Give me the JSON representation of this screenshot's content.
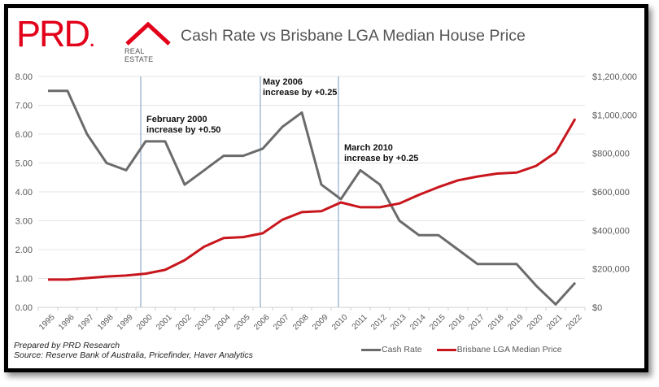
{
  "logo": {
    "brand": "PRD",
    "dot": ".",
    "sub": "REAL ESTATE"
  },
  "colors": {
    "brand_red": "#e2001a",
    "cash_rate": "#6b6b6b",
    "median_price": "#c8161d",
    "annotation_line": "#8eaac8",
    "grid": "#e4e4e4"
  },
  "footer": {
    "prepared_by": "Prepared by PRD Research",
    "source": "Source: Reserve Bank of Australia, Pricefinder, Haver Analytics"
  },
  "chart_data": {
    "type": "line",
    "title": "Cash Rate vs Brisbane LGA Median House Price",
    "xlabel": "",
    "ylabel": "",
    "y2label": "",
    "categories": [
      "1995",
      "1996",
      "1997",
      "1998",
      "1999",
      "2000",
      "2001",
      "2002",
      "2003",
      "2004",
      "2005",
      "2006",
      "2007",
      "2008",
      "2009",
      "2010",
      "2011",
      "2012",
      "2013",
      "2014",
      "2015",
      "2016",
      "2017",
      "2018",
      "2019",
      "2020",
      "2021",
      "2022"
    ],
    "ylim": [
      0,
      8
    ],
    "y_ticks": [
      "0.00",
      "1.00",
      "2.00",
      "3.00",
      "4.00",
      "5.00",
      "6.00",
      "7.00",
      "8.00"
    ],
    "y2lim": [
      0,
      1200000
    ],
    "y2_ticks": [
      "$0",
      "$200,000",
      "$400,000",
      "$600,000",
      "$800,000",
      "$1,000,000",
      "$1,200,000"
    ],
    "grid": true,
    "legend_position": "bottom-right",
    "series": [
      {
        "name": "Cash Rate",
        "axis": "left",
        "values": [
          7.5,
          7.5,
          6.0,
          5.0,
          4.75,
          5.75,
          5.75,
          4.25,
          4.75,
          5.25,
          5.25,
          5.5,
          6.25,
          6.75,
          4.25,
          3.75,
          4.75,
          4.25,
          3.0,
          2.5,
          2.5,
          2.0,
          1.5,
          1.5,
          1.5,
          0.75,
          0.1,
          0.85
        ]
      },
      {
        "name": "Brisbane LGA Median Price",
        "axis": "right",
        "values": [
          144000,
          144000,
          152000,
          160000,
          165000,
          175000,
          195000,
          245000,
          315000,
          360000,
          365000,
          385000,
          455000,
          495000,
          500000,
          545000,
          520000,
          520000,
          540000,
          585000,
          625000,
          660000,
          680000,
          695000,
          700000,
          735000,
          805000,
          980000
        ]
      }
    ],
    "annotations": [
      {
        "at": 4.75,
        "line1": "February 2000",
        "line2": "increase by +0.50"
      },
      {
        "at": 11.0,
        "line1": "May 2006",
        "line2": "increase by +0.25"
      },
      {
        "at": 15.0,
        "line1": "March 2010",
        "line2": "increase by +0.25"
      }
    ]
  }
}
